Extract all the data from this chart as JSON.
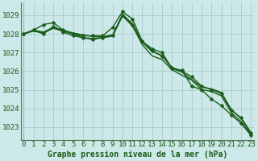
{
  "xlabel": "Graphe pression niveau de la mer (hPa)",
  "background_color": "#cce8e8",
  "grid_color": "#aacccc",
  "line_color": "#1a5c1a",
  "xlim": [
    -0.3,
    23.3
  ],
  "ylim": [
    1022.3,
    1029.7
  ],
  "yticks": [
    1023,
    1024,
    1025,
    1026,
    1027,
    1028,
    1029
  ],
  "xticks": [
    0,
    1,
    2,
    3,
    4,
    5,
    6,
    7,
    8,
    9,
    10,
    11,
    12,
    13,
    14,
    15,
    16,
    17,
    18,
    19,
    20,
    21,
    22,
    23
  ],
  "series": [
    {
      "x": [
        0,
        1,
        2,
        3,
        4,
        5,
        6,
        7,
        8,
        9,
        10,
        11,
        12,
        13,
        14,
        15,
        16,
        17,
        18,
        19,
        20,
        21,
        22,
        23
      ],
      "y": [
        1028.0,
        1028.2,
        1028.1,
        1028.35,
        1028.2,
        1028.05,
        1027.95,
        1027.85,
        1027.85,
        1027.95,
        1029.05,
        1028.55,
        1027.55,
        1027.05,
        1026.85,
        1026.15,
        1025.95,
        1025.55,
        1025.15,
        1025.05,
        1024.85,
        1023.95,
        1023.45,
        1022.65
      ],
      "linewidth": 1.0,
      "has_marker": false
    },
    {
      "x": [
        0,
        1,
        2,
        3,
        4,
        5,
        6,
        7,
        8,
        9,
        10,
        11,
        12,
        13,
        14,
        15,
        16,
        17,
        18,
        19,
        20,
        21,
        22,
        23
      ],
      "y": [
        1028.0,
        1028.15,
        1028.05,
        1028.3,
        1028.15,
        1028.0,
        1027.8,
        1027.75,
        1027.8,
        1027.88,
        1028.97,
        1028.43,
        1027.42,
        1026.82,
        1026.62,
        1026.08,
        1025.78,
        1025.52,
        1025.02,
        1024.9,
        1024.68,
        1023.78,
        1023.28,
        1022.58
      ],
      "linewidth": 1.0,
      "has_marker": false
    },
    {
      "x": [
        0,
        1,
        2,
        3,
        4,
        5,
        6,
        7,
        8,
        9,
        10,
        11,
        12,
        13,
        14,
        15,
        16,
        17,
        18,
        19,
        20,
        21,
        22,
        23
      ],
      "y": [
        1028.0,
        1028.2,
        1028.0,
        1028.4,
        1028.1,
        1027.9,
        1027.8,
        1027.7,
        1027.8,
        1027.9,
        1029.0,
        1028.5,
        1027.6,
        1027.1,
        1026.8,
        1026.2,
        1026.0,
        1025.7,
        1025.2,
        1025.0,
        1024.8,
        1023.9,
        1023.5,
        1022.7
      ],
      "linewidth": 1.0,
      "has_marker": true,
      "markersize": 2.5
    },
    {
      "x": [
        0,
        1,
        2,
        3,
        4,
        5,
        6,
        7,
        8,
        9,
        10,
        11,
        12,
        13,
        14,
        15,
        16,
        17,
        18,
        19,
        20,
        21,
        22,
        23
      ],
      "y": [
        1028.0,
        1028.2,
        1028.5,
        1028.6,
        1028.2,
        1028.0,
        1027.9,
        1027.9,
        1027.9,
        1028.35,
        1029.2,
        1028.8,
        1027.6,
        1027.2,
        1027.0,
        1026.15,
        1026.05,
        1025.2,
        1025.0,
        1024.5,
        1024.15,
        1023.65,
        1023.2,
        1022.55
      ],
      "linewidth": 1.0,
      "has_marker": true,
      "markersize": 2.5
    }
  ],
  "tick_fontsize": 6.5,
  "label_fontsize": 7,
  "spine_color": "#557755"
}
